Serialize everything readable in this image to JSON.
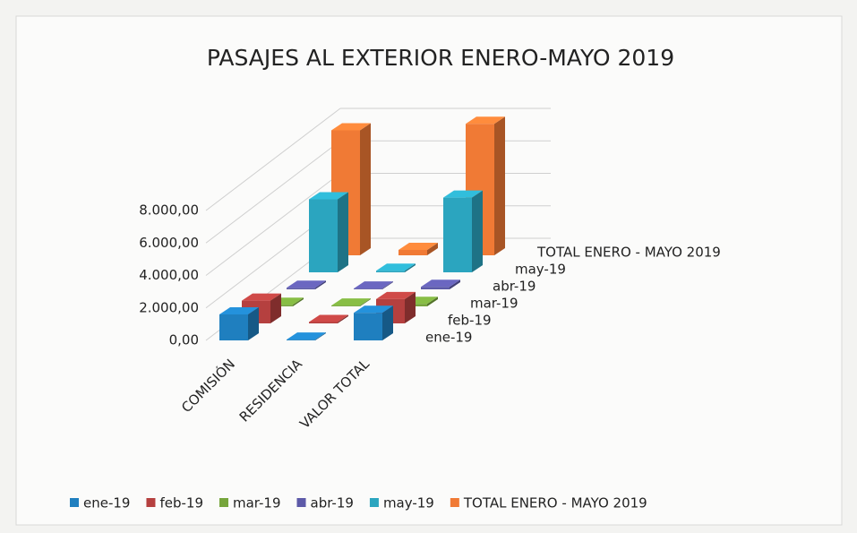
{
  "chart_data": {
    "type": "bar3d",
    "title": "PASAJES AL EXTERIOR ENERO-MAYO 2019",
    "categories": [
      "COMISIÓN",
      "RESIDENCIA",
      "VALOR TOTAL"
    ],
    "series": [
      {
        "name": "ene-19",
        "color": "#1f7fbf",
        "values": [
          1600,
          50,
          1700
        ]
      },
      {
        "name": "feb-19",
        "color": "#b5403f",
        "values": [
          1400,
          80,
          1500
        ]
      },
      {
        "name": "mar-19",
        "color": "#76a53c",
        "values": [
          100,
          50,
          150
        ]
      },
      {
        "name": "abr-19",
        "color": "#5d5aa8",
        "values": [
          100,
          50,
          150
        ]
      },
      {
        "name": "may-19",
        "color": "#2ba5bf",
        "values": [
          4500,
          100,
          4600
        ]
      },
      {
        "name": "TOTAL ENERO - MAYO 2019",
        "color": "#f07a35",
        "values": [
          7700,
          330,
          8100
        ]
      }
    ],
    "ylim": [
      0,
      8000
    ],
    "yticks": [
      {
        "value": 0,
        "label": "0,00"
      },
      {
        "value": 2000,
        "label": "2.000,00"
      },
      {
        "value": 4000,
        "label": "4.000,00"
      },
      {
        "value": 6000,
        "label": "6.000,00"
      },
      {
        "value": 8000,
        "label": "8.000,00"
      }
    ],
    "grid": true
  }
}
